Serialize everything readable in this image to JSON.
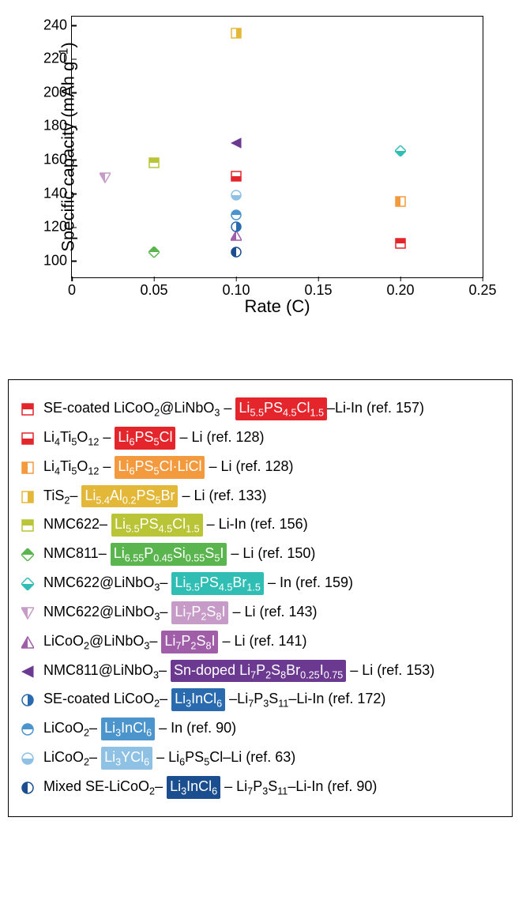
{
  "chart": {
    "type": "scatter",
    "xlabel": "Rate (C)",
    "ylabel_html": "Specific capacity (mAh g<sup>–</sup><sup>1</sup>)",
    "xlim": [
      0,
      0.25
    ],
    "ylim": [
      90,
      245
    ],
    "xticks": [
      0,
      0.05,
      0.1,
      0.15,
      0.2,
      0.25
    ],
    "yticks": [
      100,
      120,
      140,
      160,
      180,
      200,
      220,
      240
    ],
    "background_color": "#ffffff",
    "axis_color": "#000000",
    "label_fontsize": 22,
    "tick_fontsize": 18,
    "marker_size": 14,
    "series": [
      {
        "id": "s1",
        "marker": "sq_hhalf",
        "color": "#e4252c",
        "x": 0.2,
        "y": 110,
        "label_html": "SE-coated LiCoO<sub>2</sub>@LiNbO<sub>3</sub> – <span class='hl' style='background:#e4252c'>Li<sub>5.5</sub>PS<sub>4.5</sub>Cl<sub>1.5</sub></span>–Li-In (ref. 157)"
      },
      {
        "id": "s2",
        "marker": "sq_hhalf2",
        "color": "#e4252c",
        "x": 0.1,
        "y": 150,
        "label_html": "Li<sub>4</sub>Ti<sub>5</sub>O<sub>12</sub> – <span class='hl' style='background:#e4252c'>Li<sub>6</sub>PS<sub>5</sub>Cl</span> – Li (ref. 128)"
      },
      {
        "id": "s3",
        "marker": "sq_vhalf",
        "color": "#f39a3e",
        "x": 0.2,
        "y": 135,
        "label_html": "Li<sub>4</sub>Ti<sub>5</sub>O<sub>12</sub> – <span class='hl' style='background:#f39a3e'>Li<sub>6</sub>PS<sub>5</sub>Cl·LiCl</span> – Li (ref. 128)"
      },
      {
        "id": "s4",
        "marker": "sq_vhalf2",
        "color": "#e3b838",
        "x": 0.1,
        "y": 235,
        "label_html": "TiS<sub>2</sub>– <span class='hl' style='background:#e3b838'>Li<sub>5.4</sub>Al<sub>0.2</sub>PS<sub>5</sub>Br</span> – Li (ref. 133)"
      },
      {
        "id": "s5",
        "marker": "sq_hhalf",
        "color": "#b9c436",
        "x": 0.05,
        "y": 158,
        "label_html": "NMC622– <span class='hl' style='background:#b9c436'>Li<sub>5.5</sub>PS<sub>4.5</sub>Cl<sub>1.5</sub></span> – Li-In (ref. 156)"
      },
      {
        "id": "s6",
        "marker": "dia_half",
        "color": "#5bb54f",
        "x": 0.05,
        "y": 105,
        "label_html": "NMC811– <span class='hl' style='background:#5bb54f'>Li<sub>6.55</sub>P<sub>0.45</sub>Si<sub>0.55</sub>S<sub>5</sub>I</span> – Li (ref. 150)"
      },
      {
        "id": "s7",
        "marker": "dia_half2",
        "color": "#30bdb3",
        "x": 0.2,
        "y": 165,
        "label_html": "NMC622@LiNbO<sub>3</sub>– <span class='hl' style='background:#30bdb3'>Li<sub>5.5</sub>PS<sub>4.5</sub>Br<sub>1.5</sub></span> – In (ref. 159)"
      },
      {
        "id": "s8",
        "marker": "tri_down",
        "color": "#c79bc8",
        "x": 0.02,
        "y": 149,
        "label_html": "NMC622@LiNbO<sub>3</sub>– <span class='hl' style='background:#c79bc8'>Li<sub>7</sub>P<sub>2</sub>S<sub>8</sub>I</span> – Li (ref. 143)"
      },
      {
        "id": "s9",
        "marker": "tri_up",
        "color": "#a15ea8",
        "x": 0.1,
        "y": 115,
        "label_html": "LiCoO<sub>2</sub>@LiNbO<sub>3</sub>– <span class='hl' style='background:#a15ea8'>Li<sub>7</sub>P<sub>2</sub>S<sub>8</sub>I</span> – Li (ref. 141)"
      },
      {
        "id": "s10",
        "marker": "tri_left",
        "color": "#6b3a90",
        "x": 0.1,
        "y": 170,
        "label_html": "NMC811@LiNbO<sub>3</sub>– <span class='hl' style='background:#6b3a90'>Sn-doped Li<sub>7</sub>P<sub>2</sub>S<sub>8</sub>Br<sub>0.25</sub>I<sub>0.75</sub></span> – Li (ref. 153)"
      },
      {
        "id": "s11",
        "marker": "circ_vhalf",
        "color": "#2a6bb0",
        "x": 0.1,
        "y": 120,
        "label_html": "SE-coated LiCoO<sub>2</sub>– <span class='hl' style='background:#2a6bb0'>Li<sub>3</sub>InCl<sub>6</sub></span> –Li<sub>7</sub>P<sub>3</sub>S<sub>11</sub>–Li-In (ref. 172)"
      },
      {
        "id": "s12",
        "marker": "circ_hhalf",
        "color": "#4b94cc",
        "x": 0.1,
        "y": 127,
        "label_html": "LiCoO<sub>2</sub>– <span class='hl' style='background:#4b94cc'>Li<sub>3</sub>InCl<sub>6</sub></span> – In (ref. 90)"
      },
      {
        "id": "s13",
        "marker": "circ_hhalf2",
        "color": "#8ec1e4",
        "x": 0.1,
        "y": 139,
        "label_html": "LiCoO<sub>2</sub>– <span class='hl' style='background:#8ec1e4'>Li<sub>3</sub>YCl<sub>6</sub></span> – Li<sub>6</sub>PS<sub>5</sub>Cl–Li (ref. 63)"
      },
      {
        "id": "s14",
        "marker": "circ_vhalf2",
        "color": "#1a4e8e",
        "x": 0.1,
        "y": 105,
        "label_html": "Mixed SE-LiCoO<sub>2</sub>– <span class='hl' style='background:#1a4e8e'>Li<sub>3</sub>InCl<sub>6</sub></span> – Li<sub>7</sub>P<sub>3</sub>S<sub>11</sub>–Li-In (ref. 90)"
      }
    ]
  }
}
